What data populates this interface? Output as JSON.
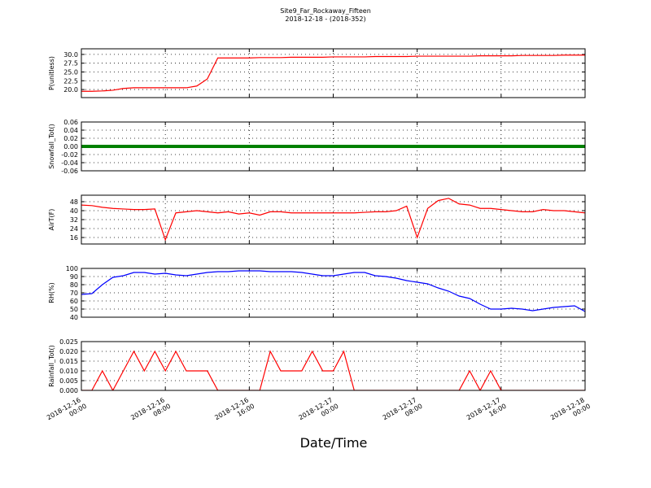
{
  "chart_data": {
    "type": "line",
    "title": "Site9_Far_Rockaway_Fifteen",
    "subtitle": "2018-12-18 - (2018-352)",
    "xlabel": "Date/Time",
    "grid": true,
    "x": [
      "2018-12-16 00:00",
      "2018-12-16 01:00",
      "2018-12-16 02:00",
      "2018-12-16 03:00",
      "2018-12-16 04:00",
      "2018-12-16 05:00",
      "2018-12-16 06:00",
      "2018-12-16 07:00",
      "2018-12-16 08:00",
      "2018-12-16 09:00",
      "2018-12-16 10:00",
      "2018-12-16 11:00",
      "2018-12-16 12:00",
      "2018-12-16 13:00",
      "2018-12-16 14:00",
      "2018-12-16 15:00",
      "2018-12-16 16:00",
      "2018-12-16 17:00",
      "2018-12-16 18:00",
      "2018-12-16 19:00",
      "2018-12-16 20:00",
      "2018-12-16 21:00",
      "2018-12-16 22:00",
      "2018-12-16 23:00",
      "2018-12-17 00:00",
      "2018-12-17 01:00",
      "2018-12-17 02:00",
      "2018-12-17 03:00",
      "2018-12-17 04:00",
      "2018-12-17 05:00",
      "2018-12-17 06:00",
      "2018-12-17 07:00",
      "2018-12-17 08:00",
      "2018-12-17 09:00",
      "2018-12-17 10:00",
      "2018-12-17 11:00",
      "2018-12-17 12:00",
      "2018-12-17 13:00",
      "2018-12-17 14:00",
      "2018-12-17 15:00",
      "2018-12-17 16:00",
      "2018-12-17 17:00",
      "2018-12-17 18:00",
      "2018-12-17 19:00",
      "2018-12-17 20:00",
      "2018-12-17 21:00",
      "2018-12-17 22:00",
      "2018-12-17 23:00",
      "2018-12-18 00:00"
    ],
    "xlim": [
      "2018-12-16 00:00",
      "2018-12-18 00:00"
    ],
    "xticks": [
      "2018-12-16 00:00",
      "2018-12-16 08:00",
      "2018-12-16 16:00",
      "2018-12-17 00:00",
      "2018-12-17 08:00",
      "2018-12-17 16:00",
      "2018-12-18 00:00"
    ],
    "panels": [
      {
        "ylabel": "P(unitless)",
        "color": "#ff0000",
        "ylim": [
          17.7,
          31.6
        ],
        "yticks": [
          {
            "value": 20,
            "label": "20.0"
          },
          22.5,
          {
            "value": 25,
            "label": "25.0"
          },
          27.5,
          {
            "value": 30,
            "label": "30.0"
          }
        ],
        "values": [
          19.5,
          19.5,
          19.6,
          19.8,
          20.3,
          20.5,
          20.5,
          20.5,
          20.5,
          20.5,
          20.5,
          21.0,
          23.0,
          29.0,
          29.0,
          29.0,
          29.0,
          29.1,
          29.1,
          29.1,
          29.2,
          29.2,
          29.2,
          29.2,
          29.3,
          29.3,
          29.3,
          29.3,
          29.4,
          29.4,
          29.4,
          29.4,
          29.5,
          29.5,
          29.5,
          29.5,
          29.5,
          29.5,
          29.6,
          29.6,
          29.6,
          29.6,
          29.7,
          29.7,
          29.7,
          29.7,
          29.8,
          29.8,
          29.8
        ]
      },
      {
        "ylabel": "Snowfall_Tot()",
        "color": "#008000",
        "ylim": [
          -0.06,
          0.06
        ],
        "yticks": [
          -0.06,
          -0.04,
          -0.02,
          {
            "value": 0,
            "label": "0.00"
          },
          0.02,
          0.04,
          0.06
        ],
        "values": [
          0,
          0,
          0,
          0,
          0,
          0,
          0,
          0,
          0,
          0,
          0,
          0,
          0,
          0,
          0,
          0,
          0,
          0,
          0,
          0,
          0,
          0,
          0,
          0,
          0,
          0,
          0,
          0,
          0,
          0,
          0,
          0,
          0,
          0,
          0,
          0,
          0,
          0,
          0,
          0,
          0,
          0,
          0,
          0,
          0,
          0,
          0,
          0,
          0
        ]
      },
      {
        "ylabel": "AirT(F)",
        "color": "#ff0000",
        "ylim": [
          10.2,
          53.8
        ],
        "yticks": [
          16,
          24,
          32,
          40,
          48
        ],
        "values": [
          45,
          44.5,
          43,
          42,
          41.5,
          41,
          41,
          41.5,
          14,
          38,
          39,
          40,
          39,
          38,
          39,
          37,
          38,
          36,
          39,
          39,
          38,
          38,
          38,
          38,
          38,
          38,
          38,
          38.5,
          39,
          39,
          40,
          44,
          16,
          42,
          49,
          51,
          46,
          45,
          42,
          42,
          41,
          40,
          39,
          39,
          41,
          40,
          40,
          39,
          38
        ]
      },
      {
        "ylabel": "RH(%)",
        "color": "#0000ff",
        "ylim": [
          40,
          100
        ],
        "yticks": [
          40,
          50,
          60,
          70,
          80,
          90,
          100
        ],
        "values": [
          68,
          69,
          80,
          89,
          91,
          95,
          95,
          93,
          94,
          92,
          91,
          93,
          95,
          96,
          96,
          97,
          97,
          97,
          96,
          96,
          96,
          95,
          93,
          91,
          91,
          93,
          95,
          95,
          91,
          90,
          88,
          85,
          83,
          81,
          76,
          72,
          66,
          63,
          56,
          50,
          50,
          51,
          50,
          48,
          50,
          52,
          53,
          54,
          47
        ]
      },
      {
        "ylabel": "Rainfall_Tot()",
        "color": "#ff0000",
        "ylim": [
          0,
          0.025
        ],
        "yticks": [
          {
            "value": 0,
            "label": "0.000"
          },
          {
            "value": 0.005,
            "label": "0.005"
          },
          {
            "value": 0.01,
            "label": "0.010"
          },
          {
            "value": 0.015,
            "label": "0.015"
          },
          {
            "value": 0.02,
            "label": "0.020"
          },
          {
            "value": 0.025,
            "label": "0.025"
          }
        ],
        "values": [
          0,
          0,
          0.01,
          0,
          0.01,
          0.02,
          0.01,
          0.02,
          0.01,
          0.02,
          0.01,
          0.01,
          0.01,
          0,
          0,
          0,
          0,
          0,
          0.02,
          0.01,
          0.01,
          0.01,
          0.02,
          0.01,
          0.01,
          0.02,
          0,
          0,
          0,
          0,
          0,
          0,
          0,
          0,
          0,
          0,
          0,
          0.01,
          0,
          0.01,
          0,
          0,
          0,
          0,
          0,
          0,
          0,
          0,
          0
        ]
      }
    ]
  }
}
